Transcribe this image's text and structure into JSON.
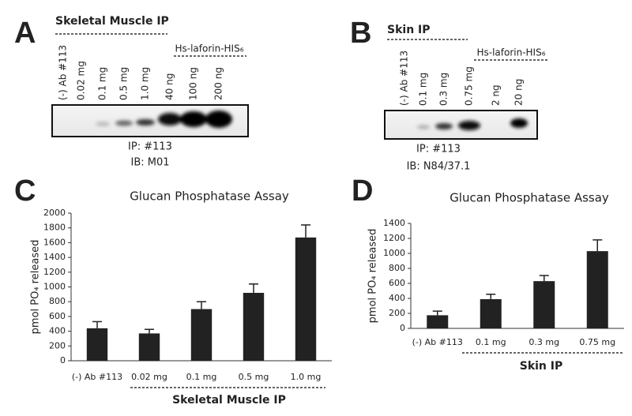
{
  "blots": [
    {
      "letter": "A",
      "title": "Skeletal Muscle IP",
      "lanes": [
        "(-) Ab #113",
        "0.02 mg",
        "0.1 mg",
        "0.5 mg",
        "1.0 mg",
        "40 ng",
        "100 ng",
        "200 ng"
      ],
      "group_label": "Hs-laforin-HIS₆",
      "captions": [
        "IP: #113",
        "IB: M01"
      ]
    },
    {
      "letter": "B",
      "title": "Skin IP",
      "lanes": [
        "(-) Ab #113",
        "0.1 mg",
        "0.3 mg",
        "0.75 mg",
        "2 ng",
        "20 ng"
      ],
      "group_label": "Hs-laforin-HIS₆",
      "captions": [
        "IP: #113",
        "IB: N84/37.1"
      ]
    }
  ],
  "chart_data": [
    {
      "type": "bar",
      "letter": "C",
      "title": "Glucan Phosphatase Assay",
      "y_label": "pmol PO₄ released",
      "categories": [
        "(-) Ab #113",
        "0.02 mg",
        "0.1 mg",
        "0.5 mg",
        "1.0 mg"
      ],
      "values": [
        440,
        370,
        700,
        920,
        1670
      ],
      "errors": [
        90,
        55,
        100,
        120,
        170
      ],
      "color": "#222222",
      "group_label": "Skeletal Muscle IP",
      "ylim": [
        0,
        2000
      ],
      "yticks": [
        0,
        200,
        400,
        600,
        800,
        1000,
        1200,
        1400,
        1600,
        1800,
        2000
      ]
    },
    {
      "type": "bar",
      "letter": "D",
      "title": "Glucan Phosphatase Assay",
      "y_label": "pmol PO₄ released",
      "categories": [
        "(-) Ab #113",
        "0.1 mg",
        "0.3 mg",
        "0.75 mg"
      ],
      "values": [
        175,
        390,
        630,
        1030
      ],
      "errors": [
        55,
        65,
        75,
        150
      ],
      "color": "#222222",
      "group_label": "Skin IP",
      "ylim": [
        0,
        1400
      ],
      "yticks": [
        0,
        200,
        400,
        600,
        800,
        1000,
        1200,
        1400
      ]
    }
  ]
}
